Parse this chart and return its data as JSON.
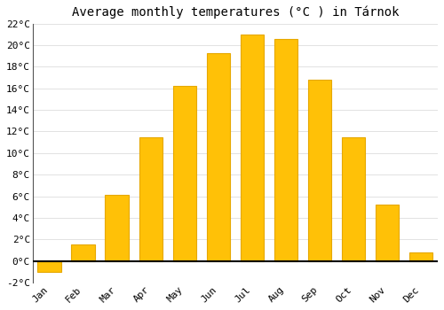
{
  "title": "Average monthly temperatures (°C ) in Tárnok",
  "months": [
    "Jan",
    "Feb",
    "Mar",
    "Apr",
    "May",
    "Jun",
    "Jul",
    "Aug",
    "Sep",
    "Oct",
    "Nov",
    "Dec"
  ],
  "temperatures": [
    -1.0,
    1.5,
    6.1,
    11.5,
    16.2,
    19.3,
    21.0,
    20.6,
    16.8,
    11.5,
    5.2,
    0.8
  ],
  "bar_color": "#FFC107",
  "bar_edge_color": "#E6A800",
  "ylim": [
    -2,
    22
  ],
  "yticks": [
    -2,
    0,
    2,
    4,
    6,
    8,
    10,
    12,
    14,
    16,
    18,
    20,
    22
  ],
  "ytick_labels": [
    "-2°C",
    "0°C",
    "2°C",
    "4°C",
    "6°C",
    "8°C",
    "10°C",
    "12°C",
    "14°C",
    "16°C",
    "18°C",
    "20°C",
    "22°C"
  ],
  "grid_color": "#dddddd",
  "background_color": "#ffffff",
  "title_fontsize": 10,
  "tick_fontsize": 8,
  "bar_width": 0.7
}
